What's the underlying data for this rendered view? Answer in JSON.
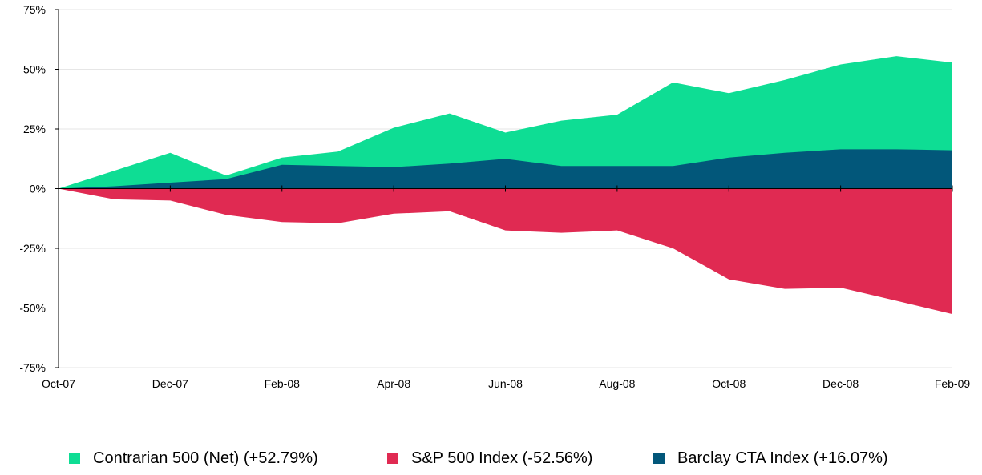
{
  "colors": {
    "contrarian": "#0edd94",
    "sp500": "#e02a52",
    "barclay": "#02577a",
    "grid": "#e6e6e6",
    "axis": "#000000"
  },
  "chart_data": {
    "type": "area",
    "title": "",
    "xlabel": "",
    "ylabel": "",
    "ylim": [
      -75,
      75
    ],
    "yticks": [
      "75%",
      "50%",
      "25%",
      "0%",
      "-25%",
      "-50%",
      "-75%"
    ],
    "ytick_values": [
      75,
      50,
      25,
      0,
      -25,
      -50,
      -75
    ],
    "x": [
      "Oct-07",
      "Nov-07",
      "Dec-07",
      "Jan-08",
      "Feb-08",
      "Mar-08",
      "Apr-08",
      "May-08",
      "Jun-08",
      "Jul-08",
      "Aug-08",
      "Sep-08",
      "Oct-08",
      "Nov-08",
      "Dec-08",
      "Jan-09",
      "Feb-09"
    ],
    "xtick_labels": [
      "Oct-07",
      "Dec-07",
      "Feb-08",
      "Apr-08",
      "Jun-08",
      "Aug-08",
      "Oct-08",
      "Dec-08",
      "Feb-09"
    ],
    "grid": true,
    "legend_position": "bottom",
    "series": [
      {
        "name": "Contrarian 500 (Net) (+52.79%)",
        "key": "contrarian",
        "values": [
          0,
          7.5,
          15,
          5.5,
          13,
          15.5,
          25.5,
          31.5,
          23.5,
          28.5,
          31,
          44.5,
          40,
          45.5,
          52,
          55.5,
          52.79
        ]
      },
      {
        "name": "Barclay CTA Index (+16.07%)",
        "key": "barclay",
        "values": [
          0,
          1,
          2.5,
          4,
          10,
          9.5,
          9,
          10.5,
          12.5,
          9.5,
          9.5,
          9.5,
          13,
          15,
          16.5,
          16.5,
          16.07
        ]
      },
      {
        "name": "S&P 500 Index (-52.56%)",
        "key": "sp500",
        "values": [
          0,
          -4.5,
          -5,
          -11,
          -14,
          -14.5,
          -10.5,
          -9.5,
          -17.5,
          -18.5,
          -17.5,
          -25,
          -38,
          -42,
          -41.5,
          -47,
          -52.56
        ]
      }
    ]
  },
  "legend": [
    {
      "label": "Contrarian 500 (Net) (+52.79%)",
      "color_key": "contrarian"
    },
    {
      "label": "S&P 500 Index (-52.56%)",
      "color_key": "sp500"
    },
    {
      "label": "Barclay CTA Index (+16.07%)",
      "color_key": "barclay"
    }
  ]
}
